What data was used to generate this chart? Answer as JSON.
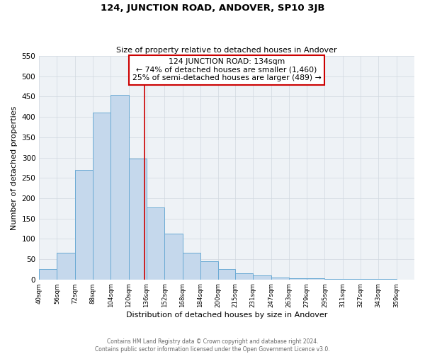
{
  "title": "124, JUNCTION ROAD, ANDOVER, SP10 3JB",
  "subtitle": "Size of property relative to detached houses in Andover",
  "xlabel": "Distribution of detached houses by size in Andover",
  "ylabel": "Number of detached properties",
  "bar_left_edges": [
    40,
    56,
    72,
    88,
    104,
    120,
    136,
    152,
    168,
    184,
    200,
    215,
    231,
    247,
    263,
    279,
    295,
    311,
    327,
    343
  ],
  "bar_heights": [
    25,
    65,
    270,
    410,
    455,
    298,
    177,
    112,
    65,
    44,
    25,
    15,
    10,
    5,
    3,
    3,
    2,
    2,
    2,
    2
  ],
  "bar_widths": [
    16,
    16,
    16,
    16,
    16,
    16,
    16,
    16,
    16,
    16,
    15,
    16,
    16,
    16,
    16,
    16,
    16,
    16,
    16,
    16
  ],
  "bar_color": "#c5d8ec",
  "bar_edge_color": "#6aaad4",
  "tick_labels": [
    "40sqm",
    "56sqm",
    "72sqm",
    "88sqm",
    "104sqm",
    "120sqm",
    "136sqm",
    "152sqm",
    "168sqm",
    "184sqm",
    "200sqm",
    "215sqm",
    "231sqm",
    "247sqm",
    "263sqm",
    "279sqm",
    "295sqm",
    "311sqm",
    "327sqm",
    "343sqm",
    "359sqm"
  ],
  "tick_positions": [
    40,
    56,
    72,
    88,
    104,
    120,
    136,
    152,
    168,
    184,
    200,
    215,
    231,
    247,
    263,
    279,
    295,
    311,
    327,
    343,
    359
  ],
  "vline_x": 134,
  "vline_color": "#cc0000",
  "annotation_line1": "124 JUNCTION ROAD: 134sqm",
  "annotation_line2": "← 74% of detached houses are smaller (1,460)",
  "annotation_line3": "25% of semi-detached houses are larger (489) →",
  "annotation_box_color": "#cc0000",
  "ylim": [
    0,
    550
  ],
  "yticks": [
    0,
    50,
    100,
    150,
    200,
    250,
    300,
    350,
    400,
    450,
    500,
    550
  ],
  "grid_color": "#d0d8e0",
  "bg_color": "#eef2f6",
  "footnote_line1": "Contains HM Land Registry data © Crown copyright and database right 2024.",
  "footnote_line2": "Contains public sector information licensed under the Open Government Licence v3.0."
}
